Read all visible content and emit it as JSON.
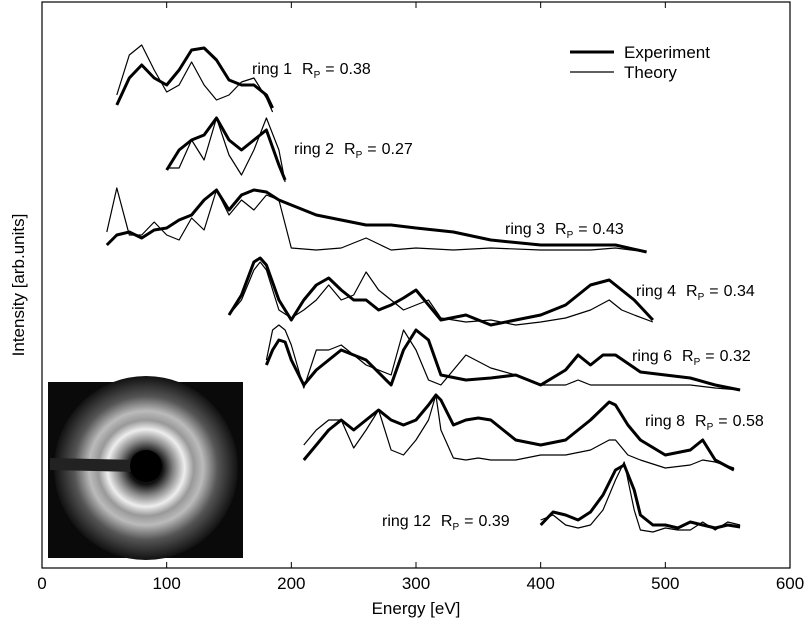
{
  "chart_data": {
    "type": "line",
    "x_label": "Energy [eV]",
    "y_label": "Intensity [arb.units]",
    "xlim": [
      0,
      600
    ],
    "xticks": [
      0,
      100,
      200,
      300,
      400,
      500,
      600
    ],
    "ylim": [
      0,
      56.6
    ],
    "yticks": [],
    "series": [
      {
        "name": "Experiment",
        "color": "#000000"
      },
      {
        "name": "Theory",
        "color": "#000000"
      }
    ],
    "rp_symbol": "R",
    "rp_subscript": "P",
    "rp_equals": "=",
    "rings": [
      {
        "name": "ring 1",
        "rp": 0.38,
        "x": [
          60,
          70,
          80,
          90,
          100,
          110,
          120,
          130,
          140,
          150,
          160,
          170,
          180,
          185
        ],
        "experiment": [
          46.3,
          49.0,
          50.3,
          49.0,
          48.3,
          49.8,
          51.8,
          52.0,
          50.8,
          48.8,
          48.3,
          48.3,
          47.3,
          46.0
        ],
        "theory": [
          47.3,
          51.3,
          52.3,
          49.8,
          47.6,
          48.3,
          50.6,
          48.3,
          46.8,
          47.3,
          48.6,
          49.0,
          47.0,
          45.6
        ]
      },
      {
        "name": "ring 2",
        "rp": 0.27,
        "x": [
          100,
          110,
          120,
          130,
          140,
          150,
          160,
          170,
          180,
          190,
          195
        ],
        "experiment": [
          39.8,
          41.8,
          42.8,
          43.3,
          45.0,
          42.8,
          41.8,
          42.8,
          43.8,
          40.3,
          38.8
        ],
        "theory": [
          40.0,
          40.0,
          42.8,
          40.8,
          45.0,
          41.3,
          39.3,
          41.8,
          45.0,
          41.8,
          38.6
        ]
      },
      {
        "name": "ring 3",
        "rp": 0.43,
        "x": [
          52,
          60,
          70,
          80,
          90,
          100,
          110,
          120,
          130,
          140,
          150,
          160,
          170,
          180,
          190,
          200,
          220,
          240,
          260,
          280,
          300,
          330,
          360,
          400,
          440,
          460,
          485
        ],
        "experiment": [
          32.3,
          33.3,
          33.6,
          33.0,
          33.8,
          34.0,
          34.8,
          35.3,
          36.8,
          37.8,
          35.8,
          37.3,
          37.8,
          37.6,
          36.8,
          36.3,
          35.3,
          34.8,
          34.3,
          34.3,
          34.0,
          33.6,
          32.8,
          32.3,
          32.3,
          32.3,
          31.6
        ],
        "theory": [
          33.6,
          38.0,
          33.3,
          33.3,
          34.6,
          33.3,
          32.8,
          35.0,
          33.8,
          37.8,
          35.3,
          36.8,
          35.8,
          37.3,
          36.8,
          32.0,
          31.8,
          32.0,
          33.0,
          31.8,
          32.0,
          31.8,
          32.0,
          31.8,
          31.8,
          32.0,
          31.6
        ]
      },
      {
        "name": "ring 4",
        "rp": 0.34,
        "x": [
          150,
          160,
          170,
          175,
          180,
          190,
          200,
          210,
          220,
          230,
          240,
          250,
          260,
          270,
          280,
          290,
          300,
          310,
          320,
          340,
          360,
          380,
          400,
          420,
          440,
          455,
          465,
          475,
          490
        ],
        "experiment": [
          25.3,
          27.3,
          30.6,
          31.0,
          30.3,
          26.8,
          24.8,
          26.8,
          28.3,
          29.0,
          27.8,
          26.8,
          26.8,
          25.8,
          26.3,
          27.0,
          27.8,
          26.3,
          24.8,
          25.3,
          24.3,
          24.8,
          25.3,
          26.3,
          28.3,
          28.8,
          27.8,
          26.8,
          24.8
        ],
        "theory": [
          25.3,
          26.8,
          29.8,
          30.6,
          29.8,
          25.8,
          25.0,
          25.8,
          26.8,
          28.3,
          26.8,
          27.3,
          29.6,
          27.8,
          26.8,
          25.8,
          26.3,
          26.8,
          25.0,
          24.6,
          24.8,
          24.3,
          24.6,
          25.0,
          25.8,
          26.8,
          25.8,
          25.3,
          24.6
        ]
      },
      {
        "name": "ring 6",
        "rp": 0.32,
        "x": [
          180,
          185,
          190,
          195,
          200,
          210,
          220,
          230,
          240,
          250,
          260,
          280,
          290,
          300,
          310,
          320,
          340,
          360,
          380,
          400,
          420,
          430,
          440,
          450,
          460,
          480,
          500,
          520,
          540,
          560
        ],
        "experiment": [
          20.3,
          21.8,
          22.8,
          22.6,
          20.8,
          18.3,
          19.8,
          20.8,
          21.8,
          21.3,
          20.8,
          18.3,
          21.8,
          23.8,
          22.8,
          19.3,
          18.8,
          19.0,
          19.3,
          18.3,
          19.8,
          21.3,
          20.3,
          21.3,
          21.3,
          19.6,
          19.3,
          19.0,
          18.3,
          17.8
        ],
        "theory": [
          20.8,
          23.8,
          24.3,
          23.8,
          22.3,
          18.0,
          21.8,
          21.8,
          22.3,
          21.3,
          20.3,
          19.3,
          23.8,
          21.8,
          18.8,
          18.3,
          21.3,
          20.0,
          19.3,
          18.3,
          18.3,
          18.8,
          18.3,
          18.3,
          18.3,
          18.3,
          18.3,
          18.3,
          18.0,
          17.8
        ]
      },
      {
        "name": "ring 8",
        "rp": 0.58,
        "x": [
          210,
          220,
          230,
          240,
          250,
          260,
          270,
          280,
          290,
          300,
          310,
          316,
          320,
          330,
          340,
          350,
          360,
          380,
          400,
          420,
          440,
          455,
          460,
          470,
          480,
          500,
          520,
          530,
          540,
          555
        ],
        "experiment": [
          10.8,
          12.3,
          13.8,
          14.8,
          13.8,
          14.8,
          15.8,
          14.8,
          14.3,
          14.8,
          16.3,
          17.3,
          16.8,
          14.3,
          14.8,
          15.0,
          14.8,
          12.8,
          12.3,
          12.8,
          14.8,
          16.6,
          16.3,
          14.3,
          12.8,
          11.3,
          11.8,
          12.8,
          10.8,
          9.8
        ],
        "theory": [
          12.3,
          13.8,
          14.8,
          14.8,
          12.0,
          13.8,
          15.8,
          11.8,
          11.3,
          12.8,
          14.8,
          17.3,
          13.8,
          11.0,
          10.8,
          11.0,
          10.8,
          10.8,
          11.3,
          11.3,
          11.8,
          12.8,
          12.8,
          11.3,
          10.8,
          10.0,
          10.3,
          10.8,
          10.6,
          10.0
        ]
      },
      {
        "name": "ring 12",
        "rp": 0.39,
        "x": [
          400,
          410,
          420,
          430,
          440,
          450,
          460,
          467,
          475,
          480,
          490,
          500,
          510,
          520,
          530,
          540,
          550,
          560
        ],
        "experiment": [
          4.3,
          5.6,
          5.3,
          4.8,
          5.6,
          7.3,
          9.8,
          10.3,
          7.8,
          5.3,
          4.3,
          4.3,
          4.0,
          4.6,
          4.3,
          4.0,
          4.3,
          4.1
        ],
        "theory": [
          4.8,
          5.3,
          4.3,
          4.0,
          4.3,
          5.8,
          8.8,
          10.6,
          5.8,
          3.8,
          3.6,
          4.0,
          3.8,
          3.8,
          4.6,
          3.8,
          4.6,
          4.3
        ]
      }
    ]
  }
}
